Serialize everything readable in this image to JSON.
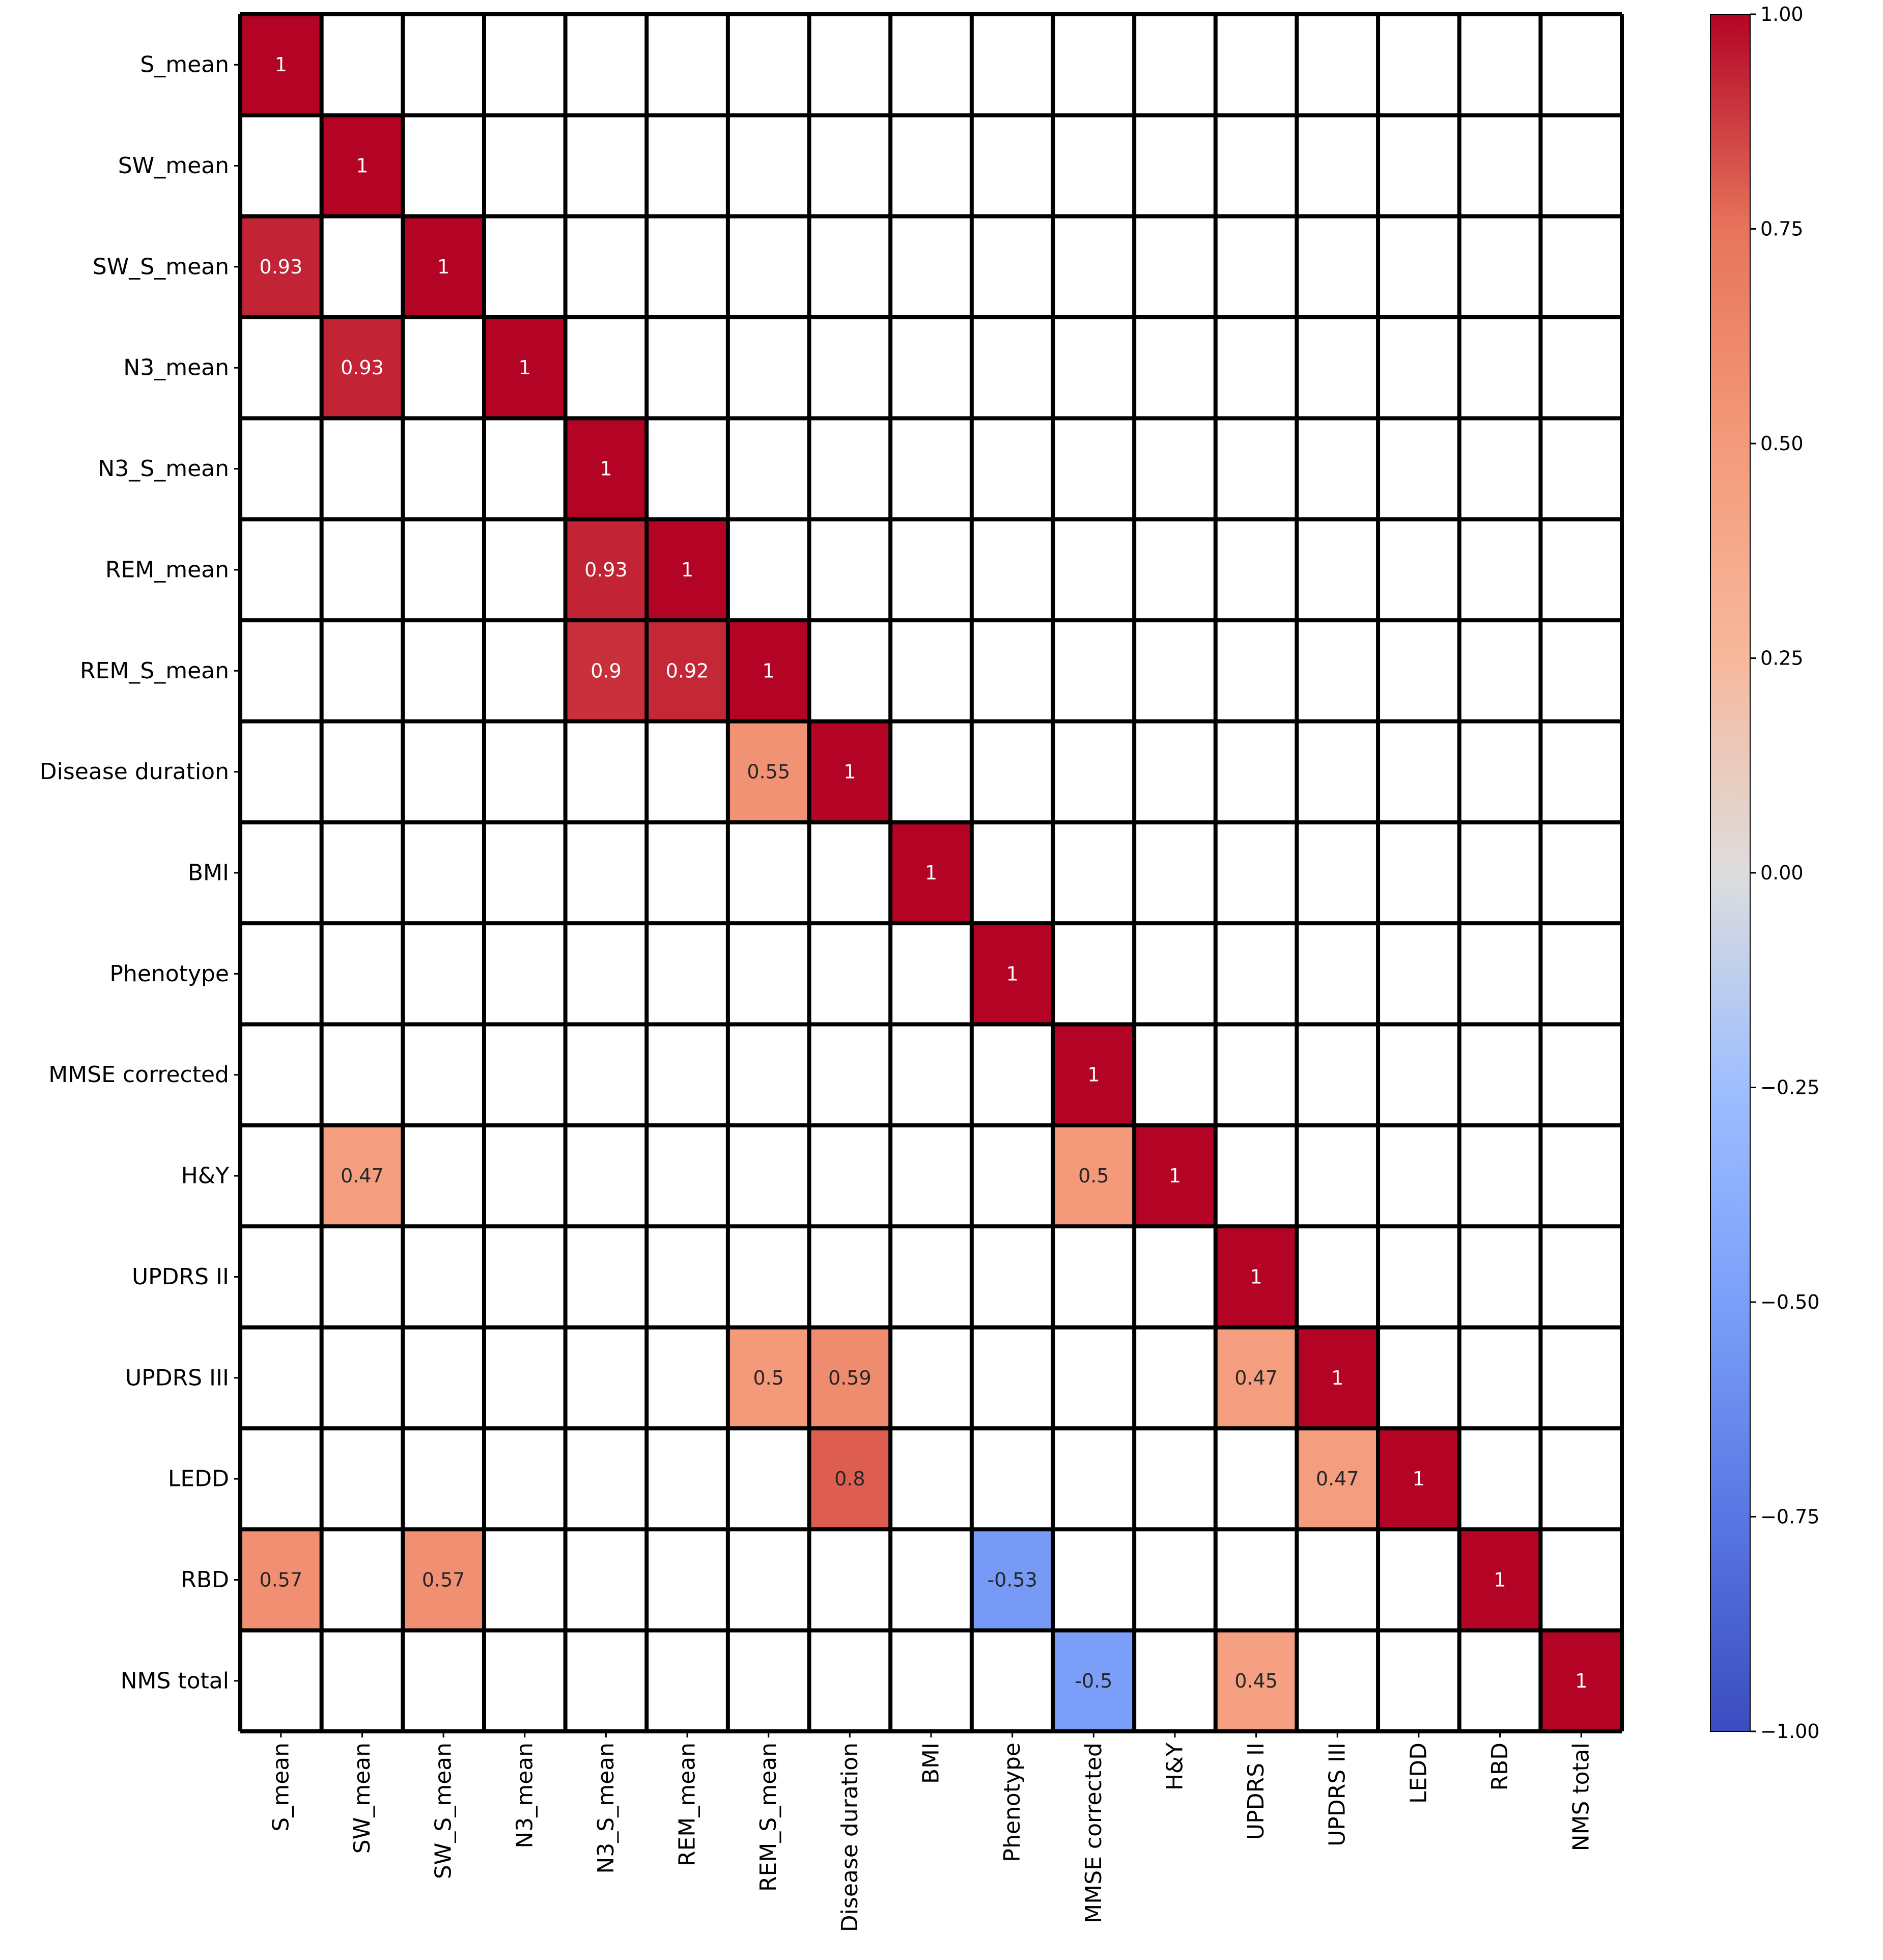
{
  "chart_data": {
    "type": "heatmap",
    "title": "",
    "xlabel": "",
    "ylabel": "",
    "colormap": "coolwarm",
    "vmin": -1.0,
    "vmax": 1.0,
    "grid": true,
    "legend": "colorbar-right",
    "labels": [
      "S_mean",
      "SW_mean",
      "SW_S_mean",
      "N3_mean",
      "N3_S_mean",
      "REM_mean",
      "REM_S_mean",
      "Disease duration",
      "BMI",
      "Phenotype",
      "MMSE corrected",
      "H&Y",
      "UPDRS II",
      "UPDRS III",
      "LEDD",
      "RBD",
      "NMS total"
    ],
    "colorbar_ticks": [
      "1.00",
      "0.75",
      "0.50",
      "0.25",
      "0.00",
      "−0.25",
      "−0.50",
      "−0.75",
      "−1.00"
    ],
    "colorbar_tick_values": [
      1.0,
      0.75,
      0.5,
      0.25,
      0.0,
      -0.25,
      -0.5,
      -0.75,
      -1.0
    ],
    "cells": [
      {
        "row": 0,
        "col": 0,
        "value": 1,
        "label": "1"
      },
      {
        "row": 1,
        "col": 1,
        "value": 1,
        "label": "1"
      },
      {
        "row": 2,
        "col": 0,
        "value": 0.93,
        "label": "0.93"
      },
      {
        "row": 2,
        "col": 2,
        "value": 1,
        "label": "1"
      },
      {
        "row": 3,
        "col": 1,
        "value": 0.93,
        "label": "0.93"
      },
      {
        "row": 3,
        "col": 3,
        "value": 1,
        "label": "1"
      },
      {
        "row": 4,
        "col": 4,
        "value": 1,
        "label": "1"
      },
      {
        "row": 5,
        "col": 4,
        "value": 0.93,
        "label": "0.93"
      },
      {
        "row": 5,
        "col": 5,
        "value": 1,
        "label": "1"
      },
      {
        "row": 6,
        "col": 4,
        "value": 0.9,
        "label": "0.9"
      },
      {
        "row": 6,
        "col": 5,
        "value": 0.92,
        "label": "0.92"
      },
      {
        "row": 6,
        "col": 6,
        "value": 1,
        "label": "1"
      },
      {
        "row": 7,
        "col": 6,
        "value": 0.55,
        "label": "0.55"
      },
      {
        "row": 7,
        "col": 7,
        "value": 1,
        "label": "1"
      },
      {
        "row": 8,
        "col": 8,
        "value": 1,
        "label": "1"
      },
      {
        "row": 9,
        "col": 9,
        "value": 1,
        "label": "1"
      },
      {
        "row": 10,
        "col": 10,
        "value": 1,
        "label": "1"
      },
      {
        "row": 11,
        "col": 1,
        "value": 0.47,
        "label": "0.47"
      },
      {
        "row": 11,
        "col": 10,
        "value": 0.5,
        "label": "0.5"
      },
      {
        "row": 11,
        "col": 11,
        "value": 1,
        "label": "1"
      },
      {
        "row": 12,
        "col": 12,
        "value": 1,
        "label": "1"
      },
      {
        "row": 13,
        "col": 6,
        "value": 0.5,
        "label": "0.5"
      },
      {
        "row": 13,
        "col": 7,
        "value": 0.59,
        "label": "0.59"
      },
      {
        "row": 13,
        "col": 12,
        "value": 0.47,
        "label": "0.47"
      },
      {
        "row": 13,
        "col": 13,
        "value": 1,
        "label": "1"
      },
      {
        "row": 14,
        "col": 7,
        "value": 0.8,
        "label": "0.8"
      },
      {
        "row": 14,
        "col": 13,
        "value": 0.47,
        "label": "0.47"
      },
      {
        "row": 14,
        "col": 14,
        "value": 1,
        "label": "1"
      },
      {
        "row": 15,
        "col": 0,
        "value": 0.57,
        "label": "0.57"
      },
      {
        "row": 15,
        "col": 2,
        "value": 0.57,
        "label": "0.57"
      },
      {
        "row": 15,
        "col": 9,
        "value": -0.53,
        "label": "-0.53"
      },
      {
        "row": 15,
        "col": 15,
        "value": 1,
        "label": "1"
      },
      {
        "row": 16,
        "col": 10,
        "value": -0.5,
        "label": "-0.5"
      },
      {
        "row": 16,
        "col": 12,
        "value": 0.45,
        "label": "0.45"
      },
      {
        "row": 16,
        "col": 16,
        "value": 1,
        "label": "1"
      }
    ]
  }
}
